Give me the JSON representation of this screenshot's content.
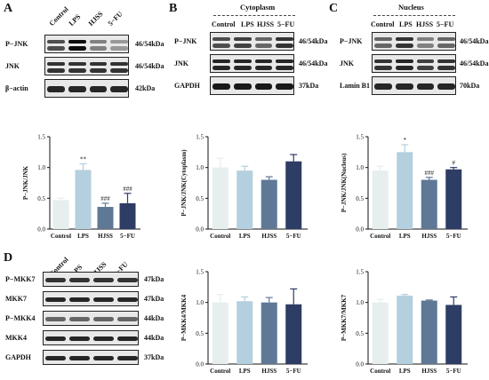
{
  "panel_letters": {
    "a": "A",
    "b": "B",
    "c": "C",
    "d": "D"
  },
  "sections": {
    "cytoplasm": "Cytoplasm",
    "nucleus": "Nucleus"
  },
  "lanes": [
    "Control",
    "LPS",
    "HJSS",
    "5−FU"
  ],
  "blots": {
    "A": [
      {
        "protein": "P−JNK",
        "kda": "46/54kDa"
      },
      {
        "protein": "JNK",
        "kda": "46/54kDa"
      },
      {
        "protein": "β−actin",
        "kda": "42kDa"
      }
    ],
    "B": [
      {
        "protein": "P−JNK",
        "kda": "46/54kDa"
      },
      {
        "protein": "JNK",
        "kda": "46/54kDa"
      },
      {
        "protein": "GAPDH",
        "kda": "37kDa"
      }
    ],
    "C": [
      {
        "protein": "P−JNK",
        "kda": "46/54kDa"
      },
      {
        "protein": "JNK",
        "kda": "46/54kDa"
      },
      {
        "protein": "Lamin B1",
        "kda": "70kDa"
      }
    ],
    "D": [
      {
        "protein": "P−MKK7",
        "kda": "47kDa"
      },
      {
        "protein": "MKK7",
        "kda": "47kDa"
      },
      {
        "protein": "P−MKK4",
        "kda": "44kDa"
      },
      {
        "protein": "MKK4",
        "kda": "44kDa"
      },
      {
        "protein": "GAPDH",
        "kda": "37kDa"
      }
    ]
  },
  "colors": {
    "control": "#e6eeee",
    "lps": "#b4cfdd",
    "hjss": "#5f7896",
    "fu": "#2e3d66"
  },
  "chart_data": [
    {
      "type": "bar",
      "ylabel": "P−JNK/JNK",
      "categories": [
        "Control",
        "LPS",
        "HJSS",
        "5−FU"
      ],
      "values": [
        0.47,
        0.96,
        0.36,
        0.42
      ],
      "errors": [
        0.03,
        0.1,
        0.06,
        0.16
      ],
      "annotations": [
        "",
        "**",
        "###",
        "###"
      ],
      "ylim": [
        0,
        1.5
      ],
      "yticks": [
        "0.0",
        "0.5",
        "1.0",
        "1.5"
      ]
    },
    {
      "type": "bar",
      "ylabel": "P−JNK/JNK(Cytoplasm)",
      "categories": [
        "Control",
        "LPS",
        "HJSS",
        "5−FU"
      ],
      "values": [
        1.0,
        0.95,
        0.8,
        1.1
      ],
      "errors": [
        0.15,
        0.07,
        0.05,
        0.11
      ],
      "annotations": [
        "",
        "",
        "",
        ""
      ],
      "ylim": [
        0,
        1.5
      ],
      "yticks": [
        "0.0",
        "0.5",
        "1.0",
        "1.5"
      ]
    },
    {
      "type": "bar",
      "ylabel": "P−JNK/JNK(Nucleus)",
      "categories": [
        "Control",
        "LPS",
        "HJSS",
        "5−FU"
      ],
      "values": [
        0.95,
        1.25,
        0.8,
        0.97
      ],
      "errors": [
        0.07,
        0.12,
        0.04,
        0.03
      ],
      "annotations": [
        "",
        "*",
        "###",
        "#"
      ],
      "ylim": [
        0,
        1.5
      ],
      "yticks": [
        "0.0",
        "0.5",
        "1.0",
        "1.5"
      ]
    },
    {
      "type": "bar",
      "ylabel": "P−MKK4/MKK4",
      "categories": [
        "Control",
        "LPS",
        "HJSS",
        "5−FU"
      ],
      "values": [
        1.0,
        1.02,
        1.0,
        0.97
      ],
      "errors": [
        0.13,
        0.07,
        0.08,
        0.25
      ],
      "annotations": [
        "",
        "",
        "",
        ""
      ],
      "ylim": [
        0,
        1.5
      ],
      "yticks": [
        "0.0",
        "0.5",
        "1.0",
        "1.5"
      ]
    },
    {
      "type": "bar",
      "ylabel": "P−MKK7/MKK7",
      "categories": [
        "Control",
        "LPS",
        "HJSS",
        "5−FU"
      ],
      "values": [
        1.0,
        1.11,
        1.03,
        0.96
      ],
      "errors": [
        0.05,
        0.02,
        0.01,
        0.13
      ],
      "annotations": [
        "",
        "",
        "",
        ""
      ],
      "ylim": [
        0,
        1.5
      ],
      "yticks": [
        "0.0",
        "0.5",
        "1.0",
        "1.5"
      ]
    }
  ]
}
